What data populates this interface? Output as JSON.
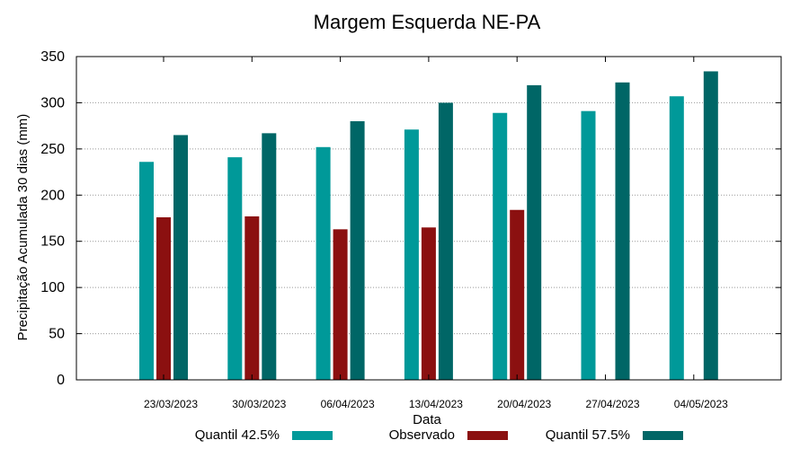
{
  "chart_data": {
    "type": "bar",
    "title": "Margem Esquerda NE-PA",
    "xlabel": "Data",
    "ylabel": "Precipitação Acumulada 30 dias (mm)",
    "ylim": [
      0,
      350
    ],
    "yticks": [
      0,
      50,
      100,
      150,
      200,
      250,
      300,
      350
    ],
    "ytick_labels": [
      "0",
      "50",
      "100",
      "150",
      "200",
      "250",
      "300",
      "350"
    ],
    "grid": "horizontal-dotted",
    "legend_position": "bottom",
    "categories": [
      "23/03/2023",
      "30/03/2023",
      "06/04/2023",
      "13/04/2023",
      "20/04/2023",
      "27/04/2023",
      "04/05/2023"
    ],
    "series": [
      {
        "name": "Quantil 42.5%",
        "color": "#009999",
        "values": [
          236,
          241,
          252,
          271,
          289,
          291,
          307
        ]
      },
      {
        "name": "Observado",
        "color": "#8b1010",
        "values": [
          176,
          177,
          163,
          165,
          184,
          null,
          null
        ]
      },
      {
        "name": "Quantil 57.5%",
        "color": "#006666",
        "values": [
          265,
          267,
          280,
          300,
          319,
          322,
          334
        ]
      }
    ]
  }
}
